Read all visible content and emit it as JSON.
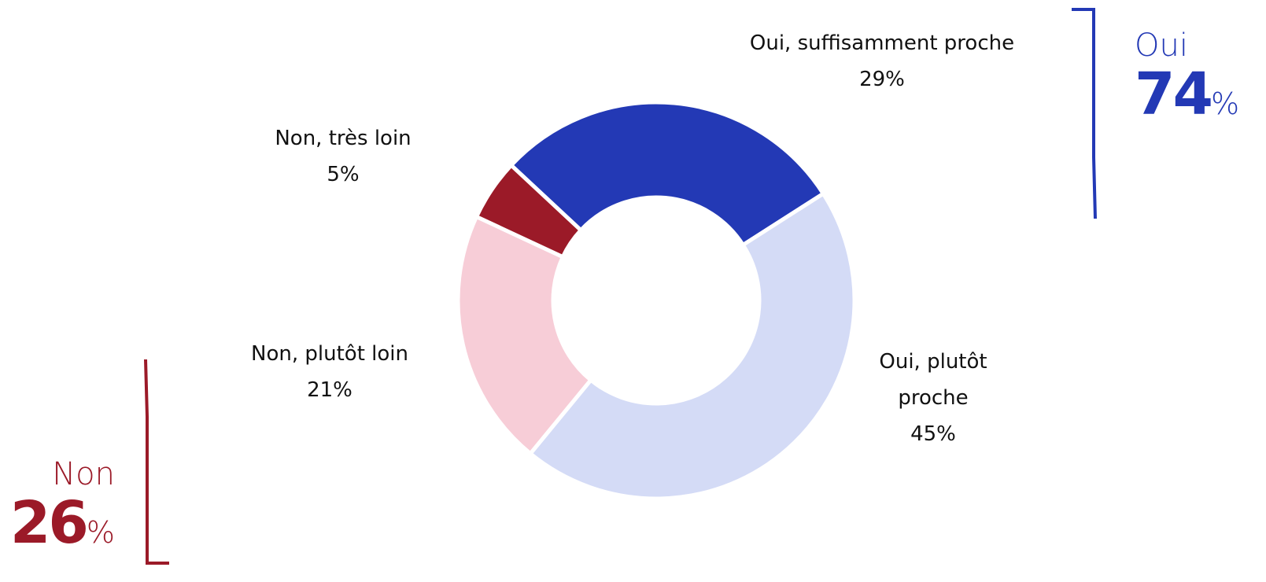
{
  "chart_data": {
    "type": "donut",
    "categories": [
      "Oui, suffisamment proche",
      "Oui, plutôt proche",
      "Non, plutôt loin",
      "Non, très loin"
    ],
    "values": [
      29,
      45,
      21,
      5
    ],
    "value_labels": [
      "29%",
      "45%",
      "21%",
      "5%"
    ],
    "colors": [
      "#2339b5",
      "#d4dbf6",
      "#f7cdd7",
      "#9b1a28"
    ],
    "groups": [
      {
        "name": "Oui",
        "value": 74,
        "unit": "%",
        "color": "#2339b5"
      },
      {
        "name": "Non",
        "value": 26,
        "unit": "%",
        "color": "#9b1a28"
      }
    ]
  }
}
